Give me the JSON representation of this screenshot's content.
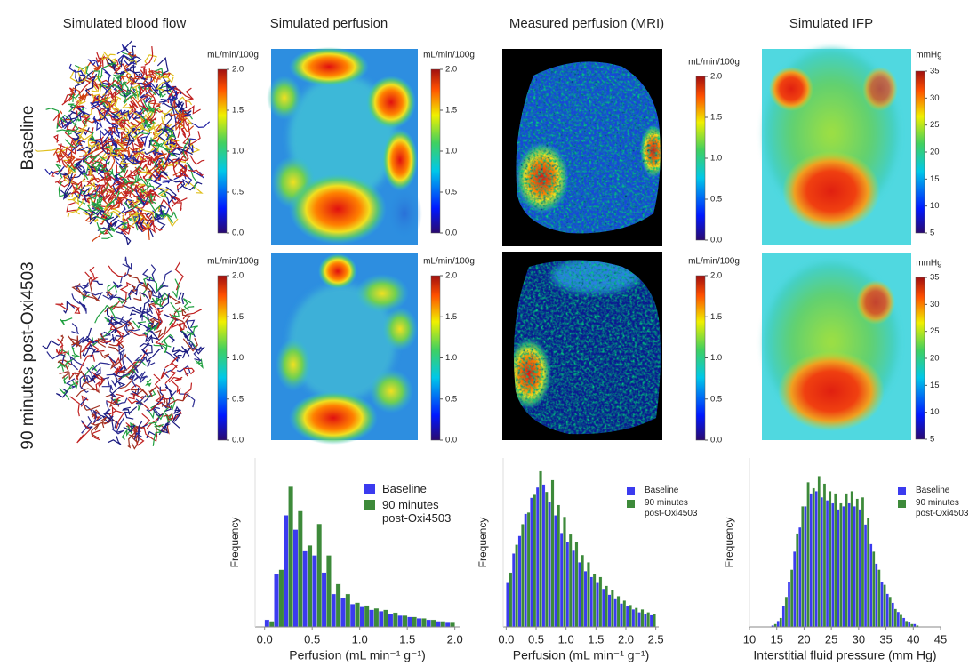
{
  "column_titles": [
    "Simulated blood flow",
    "Simulated perfusion",
    "Measured perfusion (MRI)",
    "Simulated IFP"
  ],
  "row_labels": [
    "Baseline",
    "90 minutes post-Oxi4503"
  ],
  "colorbars": [
    {
      "unit": "mL/min/100g",
      "ticks": [
        "2.0",
        "1.5",
        "1.0",
        "0.5",
        "0.0"
      ]
    },
    {
      "unit": "mL/min/100g",
      "ticks": [
        "2.0",
        "1.5",
        "1.0",
        "0.5",
        "0.0"
      ]
    },
    {
      "unit": "mL/min/100g",
      "ticks": [
        "2.0",
        "1.5",
        "1.0",
        "0.5",
        "0.0"
      ]
    },
    {
      "unit": "mmHg",
      "ticks": [
        "35",
        "30",
        "25",
        "20",
        "15",
        "10",
        "5"
      ]
    },
    {
      "unit": "mL/min/100g",
      "ticks": [
        "2.0",
        "1.5",
        "1.0",
        "0.5",
        "0.0"
      ]
    },
    {
      "unit": "mL/min/100g",
      "ticks": [
        "2.0",
        "1.5",
        "1.0",
        "0.5",
        "0.0"
      ]
    },
    {
      "unit": "mL/min/100g",
      "ticks": [
        "2.0",
        "1.5",
        "1.0",
        "0.5",
        "0.0"
      ]
    },
    {
      "unit": "mmHg",
      "ticks": [
        "35",
        "30",
        "25",
        "20",
        "15",
        "10",
        "5"
      ]
    }
  ],
  "chart_data": [
    {
      "type": "histogram",
      "x_label": "Perfusion (mL min⁻¹ g⁻¹)",
      "y_label": "Frequency",
      "bins": [
        0,
        0.1,
        0.2,
        0.3,
        0.4,
        0.5,
        0.6,
        0.7,
        0.8,
        0.9,
        1.0,
        1.1,
        1.2,
        1.3,
        1.4,
        1.5,
        1.6,
        1.7,
        1.8,
        1.9,
        2.0
      ],
      "series": [
        {
          "name": "Baseline",
          "color": "#3b3bef",
          "values": [
            5,
            37,
            78,
            68,
            53,
            50,
            38,
            23,
            20,
            16,
            14,
            12,
            11,
            9,
            8,
            7,
            6,
            5,
            4,
            3
          ]
        },
        {
          "name": "90 minutes post-Oxi4503",
          "color": "#3d8a3a",
          "values": [
            4,
            40,
            98,
            81,
            57,
            72,
            50,
            30,
            23,
            17,
            15,
            13,
            12,
            10,
            8,
            7,
            6,
            5,
            4,
            3
          ]
        }
      ],
      "xlim": [
        -0.1,
        2.05
      ],
      "xticks": [
        {
          "value": 0,
          "label": "0.0"
        },
        {
          "value": 0.5,
          "label": "0.5"
        },
        {
          "value": 1,
          "label": "1.0"
        },
        {
          "value": 1.5,
          "label": "1.5"
        },
        {
          "value": 2,
          "label": "2.0"
        }
      ],
      "ylim": [
        0,
        118
      ]
    },
    {
      "type": "histogram",
      "x_label": "Perfusion (mL min⁻¹ g⁻¹)",
      "y_label": "Frequency",
      "bins": [
        0,
        0.1,
        0.2,
        0.3,
        0.4,
        0.5,
        0.6,
        0.7,
        0.8,
        0.9,
        1.0,
        1.1,
        1.2,
        1.3,
        1.4,
        1.5,
        1.6,
        1.7,
        1.8,
        1.9,
        2.0,
        2.1,
        2.2,
        2.3,
        2.4,
        2.5
      ],
      "series": [
        {
          "name": "Baseline",
          "color": "#3b3bef",
          "values": [
            30,
            50,
            62,
            77,
            88,
            95,
            97,
            85,
            76,
            64,
            58,
            52,
            44,
            38,
            34,
            30,
            26,
            22,
            19,
            16,
            14,
            12,
            10,
            9,
            8
          ]
        },
        {
          "name": "90 minutes post-Oxi4503",
          "color": "#3d8a3a",
          "values": [
            37,
            56,
            70,
            78,
            90,
            106,
            92,
            100,
            83,
            75,
            63,
            58,
            49,
            44,
            36,
            34,
            28,
            25,
            21,
            18,
            15,
            13,
            12,
            10,
            9
          ]
        }
      ],
      "xlim": [
        -0.05,
        2.55
      ],
      "xticks": [
        {
          "value": 0,
          "label": "0.0"
        },
        {
          "value": 0.5,
          "label": "0.5"
        },
        {
          "value": 1,
          "label": "1.0"
        },
        {
          "value": 1.5,
          "label": "1.5"
        },
        {
          "value": 2,
          "label": "2.0"
        },
        {
          "value": 2.5,
          "label": "2.5"
        }
      ],
      "ylim": [
        0,
        115
      ]
    },
    {
      "type": "histogram",
      "x_label": "Interstitial fluid pressure (mm Hg)",
      "y_label": "Frequency",
      "bins": [
        14,
        15,
        16,
        17,
        18,
        19,
        20,
        21,
        22,
        23,
        24,
        25,
        26,
        27,
        28,
        29,
        30,
        31,
        32,
        33,
        34,
        35,
        36,
        37,
        38,
        39,
        40,
        41
      ],
      "series": [
        {
          "name": "Baseline",
          "color": "#3b3bef",
          "values": [
            1,
            4,
            14,
            30,
            50,
            66,
            80,
            88,
            90,
            86,
            84,
            82,
            78,
            80,
            82,
            80,
            78,
            68,
            55,
            42,
            30,
            22,
            16,
            10,
            6,
            3,
            2
          ]
        },
        {
          "name": "90 minutes post-Oxi4503",
          "color": "#3d8a3a",
          "values": [
            2,
            6,
            20,
            38,
            62,
            80,
            96,
            92,
            100,
            95,
            90,
            88,
            82,
            88,
            90,
            85,
            86,
            72,
            50,
            38,
            28,
            20,
            12,
            8,
            4,
            2,
            1
          ]
        }
      ],
      "xlim": [
        10,
        45
      ],
      "xticks": [
        10,
        15,
        20,
        25,
        30,
        35,
        40,
        45
      ],
      "ylim": [
        0,
        112
      ]
    }
  ]
}
